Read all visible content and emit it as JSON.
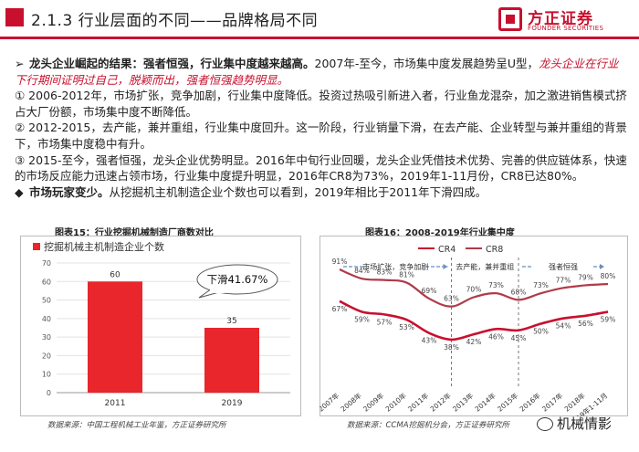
{
  "header": {
    "title": "2.1.3 行业层面的不同——品牌格局不同",
    "logo_cn": "方正证券",
    "logo_en": "FOUNDER SECURITIES"
  },
  "bullets": {
    "b1_lead": "龙头企业崛起的结果：强者恒强，行业集中度越来越高。",
    "b1_rest": "2007年-至今，市场集中度发展趋势呈U型，",
    "b1_red": "龙头企业在行业下行期间证明过自己，脱颖而出，强者恒强趋势明显。",
    "p1": "①  2006-2012年，市场扩张，竞争加剧，行业集中度降低。投资过热吸引新进入者，行业鱼龙混杂，加之激进销售模式挤占大厂份额，市场集中度不断降低。",
    "p2": "②  2012-2015，去产能，兼并重组，行业集中度回升。这一阶段，行业销量下滑，在去产能、企业转型与兼并重组的背景下，市场集中度稳中有升。",
    "p3": "③  2015-至今，强者恒强，龙头企业优势明显。2016年中旬行业回暖，龙头企业凭借技术优势、完善的供应链体系，快速的市场反应能力迅速占领市场，行业集中度提升明显，2016年CR8为73%，2019年1-11月份，CR8已达80%。",
    "b2_lead": "市场玩家变少。",
    "b2_rest": "从挖掘机主机制造企业个数也可以看到，2019年相比于2011年下滑四成。"
  },
  "figure15": {
    "label": "图表15：行业挖掘机械制造厂商数对比",
    "source": "数据来源：中国工程机械工业年鉴，方正证券研究所",
    "annotation": "下滑41.67%"
  },
  "figure16": {
    "label": "图表16：2008-2019年行业集中度",
    "source": "数据来源：CCMA挖掘机分会，方正证券研究所",
    "phases": [
      "市场扩张，竞争加剧",
      "去产能，兼并重组",
      "强者恒强"
    ]
  },
  "watermark": "机械情影",
  "colors": {
    "accent": "#c8102e",
    "bar": "#e8262b",
    "cr4": "#c8102e",
    "cr8": "#b03a48"
  },
  "chart_data": [
    {
      "type": "bar",
      "title": "",
      "series": [
        {
          "name": "挖掘机械主机制造企业个数",
          "values": [
            60,
            35
          ]
        }
      ],
      "categories": [
        "2011",
        "2019"
      ],
      "ylim": [
        0,
        70
      ],
      "yticks": [
        0,
        10,
        20,
        30,
        40,
        50,
        60,
        70
      ],
      "grid": true,
      "legend": "top-left"
    },
    {
      "type": "line",
      "title": "",
      "categories": [
        "2007年",
        "2008年",
        "2009年",
        "2010年",
        "2011年",
        "2012年",
        "2013年",
        "2014年",
        "2015年",
        "2016年",
        "2017年",
        "2018年",
        "2019年1-11月"
      ],
      "series": [
        {
          "name": "CR4",
          "values": [
            67,
            59,
            57,
            53,
            43,
            38,
            42,
            46,
            45,
            50,
            54,
            56,
            59
          ]
        },
        {
          "name": "CR8",
          "values": [
            91,
            84,
            83,
            81,
            69,
            63,
            70,
            73,
            68,
            73,
            77,
            79,
            80
          ]
        }
      ],
      "ylim": [
        20,
        100
      ],
      "grid": false,
      "legend": "top-center"
    }
  ]
}
